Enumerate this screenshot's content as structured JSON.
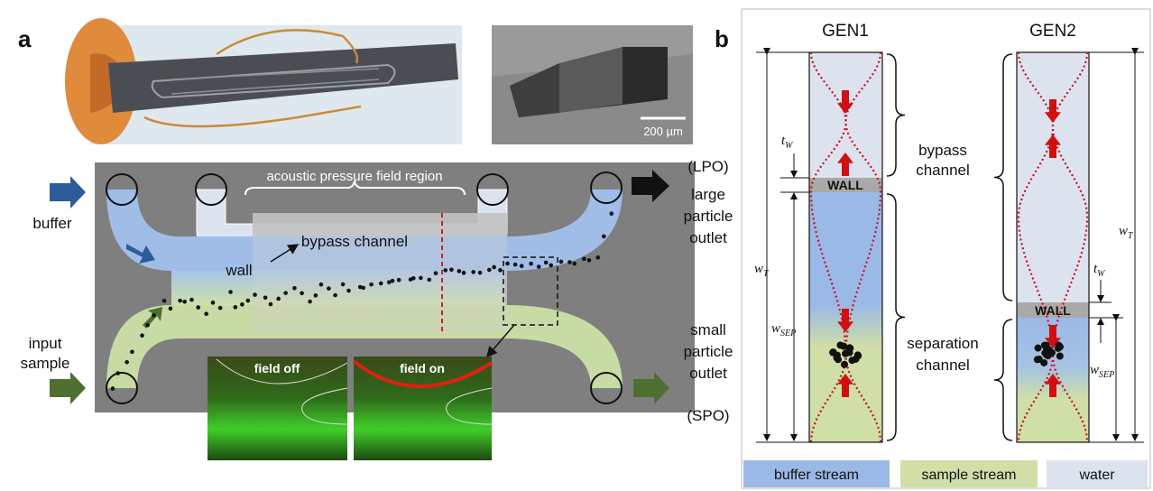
{
  "panel_a": {
    "label": "a",
    "scale_bar": "200 µm",
    "diagram": {
      "region_label": "acoustic pressure field region",
      "bypass_channel": "bypass channel",
      "wall": "wall",
      "buffer": "buffer",
      "input_sample": [
        "input",
        "sample"
      ],
      "lpo": "(LPO)",
      "large_particle_outlet": [
        "large",
        "particle",
        "outlet"
      ],
      "small_particle_outlet": [
        "small",
        "particle",
        "outlet"
      ],
      "spo": "(SPO)"
    },
    "insets": [
      "field off",
      "field on"
    ]
  },
  "panel_b": {
    "label": "b",
    "columns": [
      {
        "title": "GEN1",
        "wall": "WALL"
      },
      {
        "title": "GEN2",
        "wall": "WALL"
      }
    ],
    "bypass_channel": [
      "bypass",
      "channel"
    ],
    "separation_channel": [
      "separation",
      "channel"
    ],
    "symbols": {
      "t_w": {
        "base": "t",
        "sub": "W"
      },
      "w_t": {
        "base": "w",
        "sub": "T"
      },
      "w_sep": {
        "base": "w",
        "sub": "SEP"
      }
    },
    "legend": [
      "buffer stream",
      "sample stream",
      "water"
    ]
  }
}
